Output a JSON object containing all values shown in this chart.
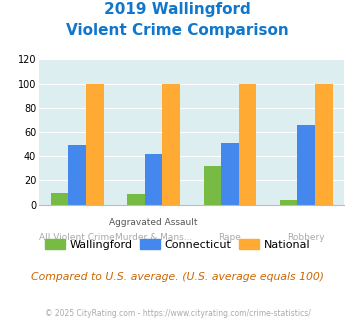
{
  "title_line1": "2019 Wallingford",
  "title_line2": "Violent Crime Comparison",
  "cat_labels_top": [
    "",
    "Aggravated Assault",
    "",
    ""
  ],
  "cat_labels_bottom": [
    "All Violent Crime",
    "Murder & Mans...",
    "Rape",
    "Robbery"
  ],
  "wallingford": [
    10,
    9,
    32,
    4
  ],
  "connecticut": [
    49,
    42,
    51,
    66
  ],
  "national": [
    100,
    100,
    100,
    100
  ],
  "colors": {
    "wallingford": "#77bb44",
    "connecticut": "#4488ee",
    "national": "#ffaa33"
  },
  "ylim": [
    0,
    120
  ],
  "yticks": [
    0,
    20,
    40,
    60,
    80,
    100,
    120
  ],
  "background_color": "#ddeef0",
  "title_color": "#1177cc",
  "footer_text": "Compared to U.S. average. (U.S. average equals 100)",
  "credit_text": "© 2025 CityRating.com - https://www.cityrating.com/crime-statistics/",
  "footer_color": "#cc6600",
  "credit_color": "#aaaaaa",
  "xlabel_top_color": "#555555",
  "xlabel_bottom_color": "#aaaaaa"
}
